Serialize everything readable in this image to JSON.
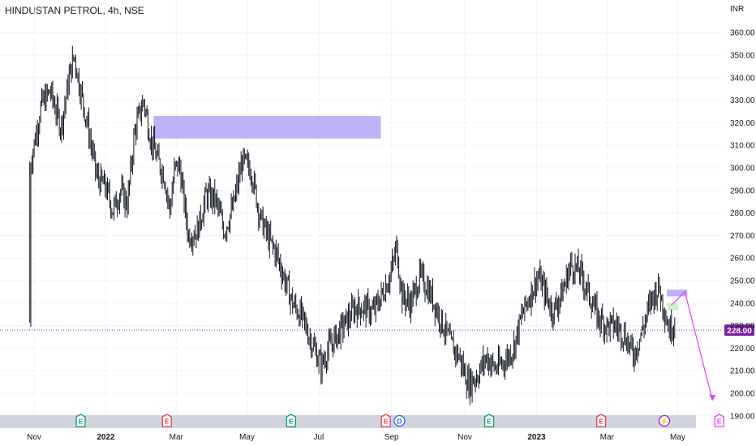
{
  "header": {
    "title": "HINDUSTAN PETROL, 4h, NSE"
  },
  "colors": {
    "candle": "#131722",
    "zone": "#b2a6f7",
    "green_zone": "#c8efc8",
    "price_line": "#9c27b0",
    "price_tag": "#7b1fa2",
    "arrow": "#e040fb",
    "event_E_green": "#089981",
    "event_E_red": "#f23645",
    "event_D": "#2962ff",
    "event_split": "#9c27b0",
    "event_future": "#e040fb",
    "grid": "#f0f3fa"
  },
  "chart_data": {
    "type": "candlestick",
    "currency_label": "INR",
    "last_price": 228.0,
    "last_price_label": "228.00",
    "y_axis": {
      "ticks": [
        190,
        200,
        210,
        220,
        230,
        240,
        250,
        260,
        270,
        280,
        290,
        300,
        310,
        320,
        330,
        340,
        350,
        360
      ],
      "tick_labels": [
        "190.00",
        "200.00",
        "210.00",
        "220.00",
        "230.00",
        "240.00",
        "250.00",
        "260.00",
        "270.00",
        "280.00",
        "290.00",
        "300.00",
        "310.00",
        "320.00",
        "330.00",
        "340.00",
        "350.00",
        "360.00"
      ]
    },
    "x_axis": {
      "labels": [
        {
          "text": "Nov",
          "bold": false
        },
        {
          "text": "2022",
          "bold": true
        },
        {
          "text": "Mar",
          "bold": false
        },
        {
          "text": "May",
          "bold": false
        },
        {
          "text": "Jul",
          "bold": false
        },
        {
          "text": "Sep",
          "bold": false
        },
        {
          "text": "Nov",
          "bold": false
        },
        {
          "text": "2023",
          "bold": true
        },
        {
          "text": "Mar",
          "bold": false
        },
        {
          "text": "May",
          "bold": false
        }
      ],
      "label_positions": [
        0.0,
        2.0,
        3.96,
        5.93,
        7.93,
        9.96,
        12.0,
        14.0,
        15.96,
        17.93
      ]
    },
    "price_path": [
      [
        -0.12,
        300
      ],
      [
        0.2,
        328
      ],
      [
        0.45,
        334
      ],
      [
        0.75,
        318
      ],
      [
        1.0,
        342
      ],
      [
        1.12,
        350
      ],
      [
        1.25,
        338
      ],
      [
        1.5,
        318
      ],
      [
        1.75,
        296
      ],
      [
        2.0,
        291
      ],
      [
        2.2,
        281
      ],
      [
        2.4,
        290
      ],
      [
        2.6,
        284
      ],
      [
        2.8,
        316
      ],
      [
        3.05,
        330
      ],
      [
        3.25,
        313
      ],
      [
        3.45,
        303
      ],
      [
        3.62,
        297
      ],
      [
        3.78,
        281
      ],
      [
        3.92,
        300
      ],
      [
        4.05,
        301
      ],
      [
        4.3,
        270
      ],
      [
        4.55,
        272
      ],
      [
        4.8,
        288
      ],
      [
        5.05,
        286
      ],
      [
        5.3,
        272
      ],
      [
        5.55,
        283
      ],
      [
        5.8,
        303
      ],
      [
        6.05,
        299
      ],
      [
        6.3,
        278
      ],
      [
        6.55,
        268
      ],
      [
        6.75,
        262
      ],
      [
        6.95,
        252
      ],
      [
        7.2,
        240
      ],
      [
        7.45,
        234
      ],
      [
        7.7,
        224
      ],
      [
        8.0,
        212
      ],
      [
        8.2,
        220
      ],
      [
        8.45,
        226
      ],
      [
        8.7,
        232
      ],
      [
        8.95,
        238
      ],
      [
        9.2,
        238
      ],
      [
        9.45,
        236
      ],
      [
        9.7,
        244
      ],
      [
        9.95,
        254
      ],
      [
        10.1,
        265
      ],
      [
        10.25,
        243
      ],
      [
        10.5,
        240
      ],
      [
        10.75,
        252
      ],
      [
        10.95,
        247
      ],
      [
        11.15,
        240
      ],
      [
        11.35,
        232
      ],
      [
        11.6,
        222
      ],
      [
        11.85,
        216
      ],
      [
        12.1,
        204
      ],
      [
        12.35,
        208
      ],
      [
        12.6,
        216
      ],
      [
        12.85,
        211
      ],
      [
        13.1,
        214
      ],
      [
        13.35,
        220
      ],
      [
        13.6,
        235
      ],
      [
        13.85,
        245
      ],
      [
        14.05,
        252
      ],
      [
        14.25,
        244
      ],
      [
        14.45,
        236
      ],
      [
        14.7,
        244
      ],
      [
        14.95,
        257
      ],
      [
        15.2,
        254
      ],
      [
        15.45,
        244
      ],
      [
        15.7,
        234
      ],
      [
        15.95,
        230
      ],
      [
        16.2,
        230
      ],
      [
        16.45,
        226
      ],
      [
        16.7,
        217
      ],
      [
        16.95,
        228
      ],
      [
        17.2,
        242
      ],
      [
        17.4,
        247
      ],
      [
        17.55,
        238
      ],
      [
        17.7,
        228
      ],
      [
        17.85,
        232
      ]
    ],
    "zones": [
      {
        "x0": 3.33,
        "x1": 9.66,
        "y0": 313,
        "y1": 323,
        "color": "zone"
      },
      {
        "x0": 17.63,
        "x1": 18.2,
        "y0": 243,
        "y1": 246,
        "color": "zone"
      },
      {
        "x0": 17.63,
        "x1": 17.96,
        "y0": 237,
        "y1": 240,
        "color": "green_zone"
      }
    ],
    "projection": [
      {
        "x": 17.75,
        "y": 239
      },
      {
        "x": 18.13,
        "y": 245
      },
      {
        "x": 18.9,
        "y": 197
      }
    ],
    "events": [
      {
        "label": "E",
        "x": 1.3,
        "kind": "event_E_green"
      },
      {
        "label": "E",
        "x": 3.7,
        "kind": "event_E_red"
      },
      {
        "label": "E",
        "x": 7.16,
        "kind": "event_E_green"
      },
      {
        "label": "E",
        "x": 9.8,
        "kind": "event_E_red"
      },
      {
        "label": "D",
        "x": 10.18,
        "kind": "event_D"
      },
      {
        "label": "E",
        "x": 12.68,
        "kind": "event_E_green"
      },
      {
        "label": "E",
        "x": 15.8,
        "kind": "event_E_red"
      },
      {
        "label": "⚡",
        "x": 17.56,
        "kind": "event_split"
      },
      {
        "label": "E",
        "x": 19.09,
        "kind": "event_future"
      }
    ]
  }
}
